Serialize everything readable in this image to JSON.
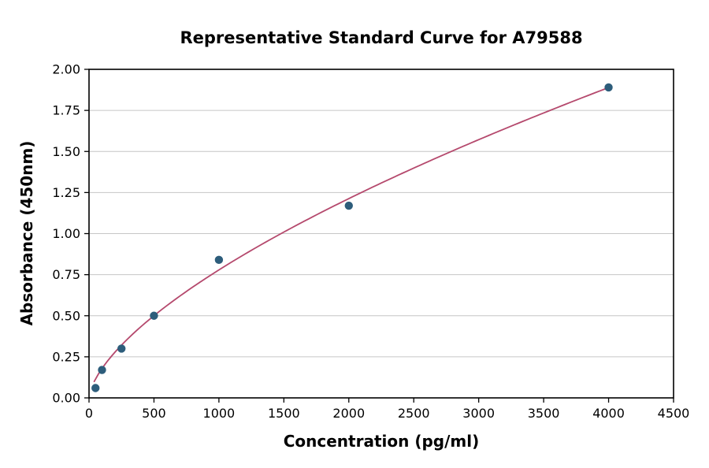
{
  "chart_data": {
    "type": "scatter",
    "title": "Representative Standard Curve for A79588",
    "xlabel": "Concentration (pg/ml)",
    "ylabel": "Absorbance (450nm)",
    "xlim": [
      0,
      4500
    ],
    "ylim": [
      0,
      2.0
    ],
    "x_ticks": [
      0,
      500,
      1000,
      1500,
      2000,
      2500,
      3000,
      3500,
      4000,
      4500
    ],
    "y_ticks": [
      0.0,
      0.25,
      0.5,
      0.75,
      1.0,
      1.25,
      1.5,
      1.75,
      2.0
    ],
    "grid": "horizontal",
    "legend": "none",
    "points": [
      {
        "x": 50,
        "y": 0.06
      },
      {
        "x": 100,
        "y": 0.17
      },
      {
        "x": 250,
        "y": 0.3
      },
      {
        "x": 500,
        "y": 0.5
      },
      {
        "x": 1000,
        "y": 0.84
      },
      {
        "x": 2000,
        "y": 1.17
      },
      {
        "x": 4000,
        "y": 1.89
      }
    ],
    "fit_curve": {
      "type": "power",
      "a": 0.00943,
      "b": 0.639,
      "x_start": 40,
      "x_end": 4000
    },
    "colors": {
      "points": "#2d5d7b",
      "curve": "#b5496d",
      "grid": "#c6c6c6",
      "axis": "#000000",
      "background": "#ffffff"
    }
  }
}
